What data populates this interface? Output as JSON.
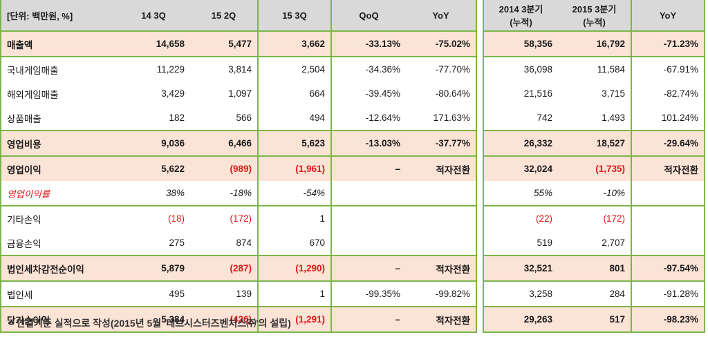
{
  "left_table": {
    "header": [
      "[단위: 백만원, %]",
      "14 3Q",
      "15 2Q",
      "15 3Q",
      "QoQ",
      "YoY"
    ],
    "rows": [
      {
        "label": "매출액",
        "v": [
          "14,658",
          "5,477",
          "3,662",
          "-33.13%",
          "-75.02%"
        ]
      },
      {
        "label": "국내게임매출",
        "v": [
          "11,229",
          "3,814",
          "2,504",
          "-34.36%",
          "-77.70%"
        ]
      },
      {
        "label": "해외게임매출",
        "v": [
          "3,429",
          "1,097",
          "664",
          "-39.45%",
          "-80.64%"
        ]
      },
      {
        "label": "상품매출",
        "v": [
          "182",
          "566",
          "494",
          "-12.64%",
          "171.63%"
        ]
      },
      {
        "label": "영업비용",
        "v": [
          "9,036",
          "6,466",
          "5,623",
          "-13.03%",
          "-37.77%"
        ]
      },
      {
        "label": "영업이익",
        "v": [
          "5,622",
          "(989)",
          "(1,961)",
          "–",
          "적자전환"
        ]
      },
      {
        "label": "영업이익률",
        "v": [
          "38%",
          "-18%",
          "-54%",
          "",
          ""
        ]
      },
      {
        "label": "기타손익",
        "v": [
          "(18)",
          "(172)",
          "1",
          "",
          ""
        ]
      },
      {
        "label": "금융손익",
        "v": [
          "275",
          "874",
          "670",
          "",
          ""
        ]
      },
      {
        "label": "법인세차감전순이익",
        "v": [
          "5,879",
          "(287)",
          "(1,290)",
          "–",
          "적자전환"
        ]
      },
      {
        "label": "법인세",
        "v": [
          "495",
          "139",
          "1",
          "-99.35%",
          "-99.82%"
        ]
      },
      {
        "label": "당기순이익",
        "v": [
          "5,384",
          "(426)",
          "(1,291)",
          "–",
          "적자전환"
        ]
      }
    ]
  },
  "right_table": {
    "header": [
      {
        "line1": "2014 3분기",
        "line2": "(누적)"
      },
      {
        "line1": "2015 3분기",
        "line2": "(누적)"
      },
      {
        "line1": "YoY",
        "line2": ""
      }
    ],
    "rows": [
      [
        "58,356",
        "16,792",
        "-71.23%"
      ],
      [
        "36,098",
        "11,584",
        "-67.91%"
      ],
      [
        "21,516",
        "3,715",
        "-82.74%"
      ],
      [
        "742",
        "1,493",
        "101.24%"
      ],
      [
        "26,332",
        "18,527",
        "-29.64%"
      ],
      [
        "32,024",
        "(1,735)",
        "적자전환"
      ],
      [
        "55%",
        "-10%",
        ""
      ],
      [
        "(22)",
        "(172)",
        ""
      ],
      [
        "519",
        "2,707",
        ""
      ],
      [
        "32,521",
        "801",
        "-97.54%"
      ],
      [
        "3,258",
        "284",
        "-91.28%"
      ],
      [
        "29,263",
        "517",
        "-98.23%"
      ]
    ]
  },
  "footnote": "* 연결기준 실적으로 작성(2015년 5월 '데브시스터즈벤처스㈜'의 설립)",
  "colors": {
    "highlight": "#fbe3d6",
    "header": "#d9d9d9",
    "grid": "#7ab648",
    "negative": "#e01818"
  }
}
